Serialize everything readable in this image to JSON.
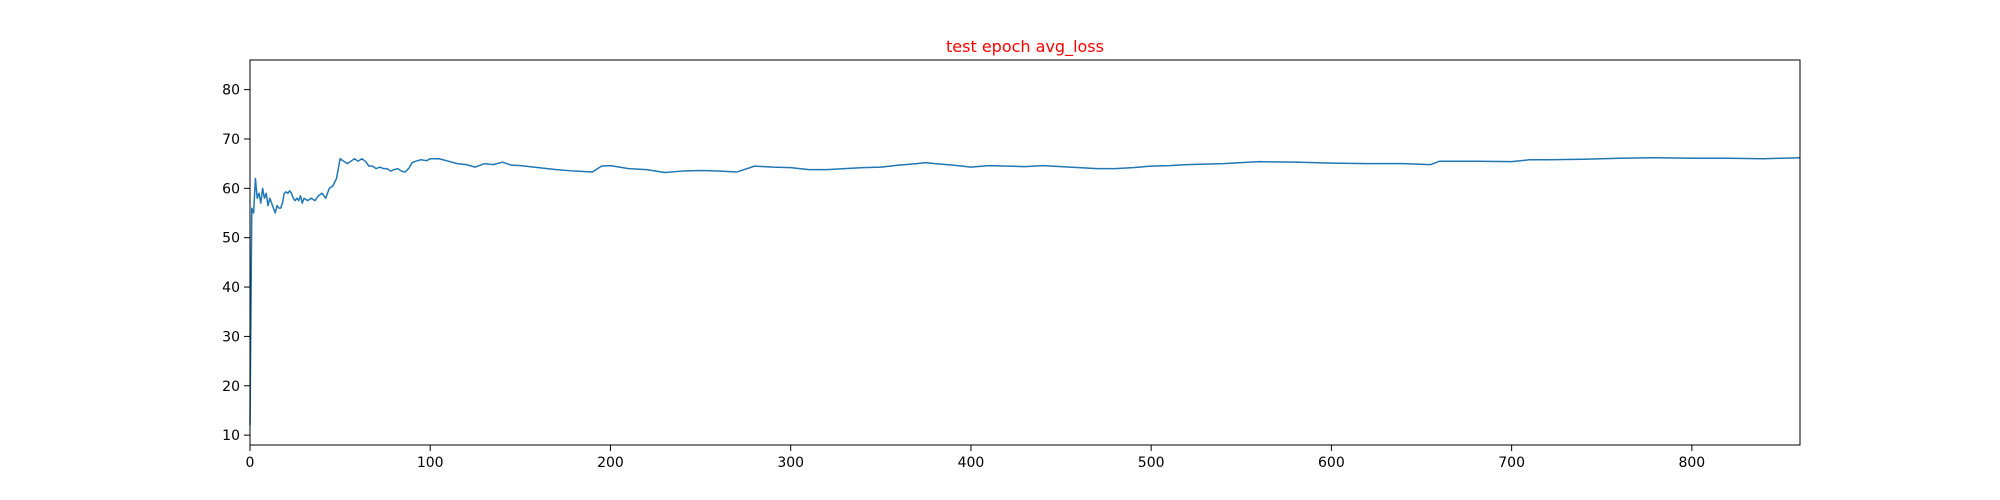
{
  "colors": {
    "title": "#ff0000",
    "line": "#1f77b4",
    "axes": "#000000",
    "background": "#ffffff"
  },
  "chart_data": {
    "type": "line",
    "title": "test epoch avg_loss",
    "xlabel": "",
    "ylabel": "",
    "xlim": [
      0,
      860
    ],
    "ylim": [
      8,
      86
    ],
    "xticks": [
      "0",
      "100",
      "200",
      "300",
      "400",
      "500",
      "600",
      "700",
      "800"
    ],
    "yticks": [
      "10",
      "20",
      "30",
      "40",
      "50",
      "60",
      "70",
      "80"
    ],
    "grid": false,
    "legend": "none",
    "series": [
      {
        "x": [
          0,
          1,
          2,
          3,
          4,
          5,
          6,
          7,
          8,
          9,
          10,
          11,
          12,
          13,
          14,
          15,
          16,
          17,
          18,
          19,
          20,
          21,
          22,
          23,
          24,
          25,
          26,
          27,
          28,
          29,
          30,
          32,
          34,
          36,
          38,
          40,
          42,
          44,
          46,
          48,
          50,
          52,
          54,
          56,
          58,
          60,
          62,
          64,
          66,
          68,
          70,
          72,
          74,
          76,
          78,
          80,
          82,
          84,
          86,
          88,
          90,
          92,
          95,
          98,
          100,
          105,
          110,
          115,
          120,
          125,
          130,
          135,
          140,
          145,
          150,
          160,
          170,
          180,
          190,
          195,
          200,
          210,
          220,
          230,
          240,
          250,
          260,
          270,
          280,
          290,
          300,
          310,
          320,
          330,
          340,
          350,
          360,
          370,
          375,
          380,
          390,
          400,
          410,
          420,
          430,
          440,
          450,
          460,
          470,
          480,
          490,
          500,
          510,
          520,
          530,
          540,
          550,
          560,
          580,
          600,
          620,
          640,
          655,
          660,
          680,
          700,
          710,
          720,
          740,
          760,
          780,
          800,
          820,
          840,
          860
        ],
        "y": [
          12,
          56,
          55,
          62,
          58,
          59,
          57,
          60,
          58,
          59,
          56.5,
          58,
          57,
          56,
          55,
          56.5,
          56,
          56,
          57,
          59,
          59.3,
          59,
          59.5,
          59,
          58,
          57.5,
          58,
          57.5,
          58.5,
          57,
          58,
          57.5,
          58,
          57.5,
          58.5,
          59,
          58,
          60,
          60.5,
          62,
          66,
          65.5,
          65,
          65.5,
          66,
          65.5,
          66,
          65.5,
          64.5,
          64.5,
          64,
          64.3,
          64,
          64,
          63.5,
          63.8,
          64,
          63.5,
          63.3,
          64,
          65.2,
          65.5,
          65.8,
          65.6,
          66,
          66,
          65.5,
          65,
          64.8,
          64.3,
          65,
          64.8,
          65.3,
          64.7,
          64.6,
          64.2,
          63.8,
          63.5,
          63.3,
          64.5,
          64.6,
          64,
          63.8,
          63.2,
          63.5,
          63.6,
          63.5,
          63.3,
          64.5,
          64.3,
          64.2,
          63.8,
          63.8,
          64,
          64.2,
          64.3,
          64.7,
          65,
          65.2,
          65,
          64.7,
          64.3,
          64.6,
          64.5,
          64.4,
          64.6,
          64.4,
          64.2,
          64,
          64,
          64.2,
          64.5,
          64.6,
          64.8,
          64.9,
          65,
          65.2,
          65.4,
          65.3,
          65.1,
          65,
          65,
          64.8,
          65.5,
          65.5,
          65.4,
          65.8,
          65.8,
          65.9,
          66.1,
          66.2,
          66.1,
          66.1,
          66,
          66.2
        ]
      }
    ]
  }
}
